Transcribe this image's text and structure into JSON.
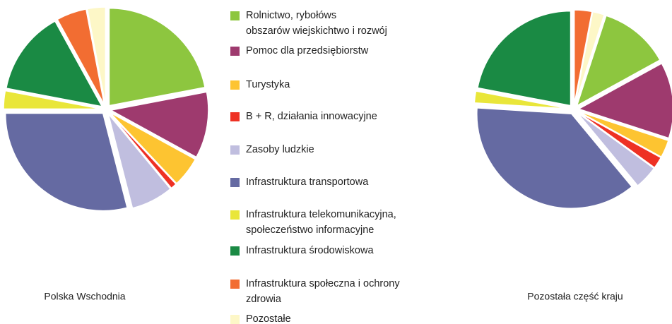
{
  "chart_data": [
    {
      "type": "pie",
      "title": "Polska Wschodnia",
      "start_angle": 0,
      "values": [
        22,
        11,
        5,
        1,
        7,
        29,
        3,
        14,
        5,
        3
      ]
    },
    {
      "type": "pie",
      "title": "Pozostała część kraju",
      "start_angle": 18,
      "values": [
        12,
        13,
        3,
        2,
        4,
        37,
        2,
        22,
        3,
        2
      ]
    }
  ],
  "legend": {
    "categories": [
      "Rolnictwo, rybołóws\nobszarów wiejskichtwo i rozwój",
      "Pomoc dla przedsiębiorstw",
      "Turystyka",
      "B + R, działania innowacyjne",
      "Zasoby ludzkie",
      "Infrastruktura transportowa",
      "Infrastruktura telekomunikacyjna,\nspołeczeństwo informacyjne",
      "Infrastruktura środowiskowa",
      "Infrastruktura społeczna i ochrony\nzdrowia",
      "Pozostałe"
    ],
    "colors": [
      "#8dc63f",
      "#9e3a6e",
      "#fdc431",
      "#ee3124",
      "#c0bedf",
      "#656aa2",
      "#e9e63a",
      "#1a8a44",
      "#f26d32",
      "#fdf7c7"
    ]
  }
}
